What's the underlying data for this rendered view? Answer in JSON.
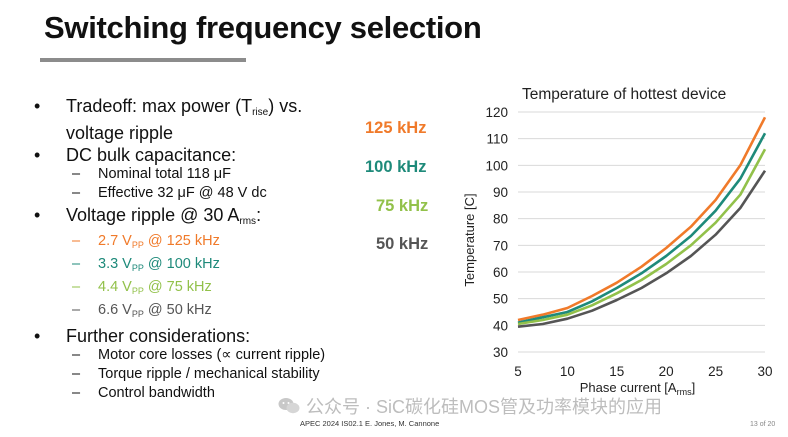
{
  "slide": {
    "title": "Switching frequency selection",
    "footer": "APEC 2024    IS02.1    E. Jones, M. Cannone",
    "page": "13 of 20",
    "watermark": "公众号 · SiC碳化硅MOS管及功率模块的应用"
  },
  "bullets": {
    "tradeoff": {
      "pre": "Tradeoff: max power (T",
      "sub": "rise",
      "post": ") vs.",
      "line2": "voltage ripple"
    },
    "dc_bulk": "DC bulk capacitance:",
    "dc_items": [
      "Nominal total 118 μF",
      "Effective 32 μF @ 48 V dc"
    ],
    "ripple": {
      "pre": "Voltage ripple @ 30 A",
      "sub": "rms",
      "post": ":"
    },
    "ripple_items": [
      {
        "a": "2.7 V",
        "sub": "PP",
        "b": " @ 125 kHz",
        "color": "#f07a2a"
      },
      {
        "a": "3.3 V",
        "sub": "PP",
        "b": " @ 100 kHz",
        "color": "#1e8a7a"
      },
      {
        "a": "4.4 V",
        "sub": "PP",
        "b": " @ 75 kHz",
        "color": "#92c14a"
      },
      {
        "a": "6.6 V",
        "sub": "PP",
        "b": " @ 50 kHz",
        "color": "#555555"
      }
    ],
    "further": "Further considerations:",
    "further_items": [
      "Motor core losses (∝ current ripple)",
      "Torque ripple / mechanical stability",
      "Control bandwidth"
    ]
  },
  "frequency_labels": [
    {
      "text": "125 kHz",
      "color": "#f07a2a"
    },
    {
      "text": "100 kHz",
      "color": "#1e8a7a"
    },
    {
      "text": "75 kHz",
      "color": "#92c14a"
    },
    {
      "text": "50 kHz",
      "color": "#555555"
    }
  ],
  "chart_data": {
    "type": "line",
    "title": "Temperature of hottest device",
    "xlabel": "Phase current [A",
    "xlabel_sub": "rms",
    "xlabel_post": "]",
    "ylabel": "Temperature  [C]",
    "xlim": [
      5,
      30
    ],
    "ylim": [
      30,
      120
    ],
    "xticks": [
      5,
      10,
      15,
      20,
      25,
      30
    ],
    "yticks": [
      30,
      40,
      50,
      60,
      70,
      80,
      90,
      100,
      110,
      120
    ],
    "grid": "horizontal",
    "x": [
      5,
      7.5,
      10,
      12.5,
      15,
      17.5,
      20,
      22.5,
      25,
      27.5,
      30
    ],
    "series": [
      {
        "color": "#f07a2a",
        "values": [
          42,
          44,
          46.5,
          51,
          56,
          62,
          69,
          77,
          87,
          100,
          118
        ]
      },
      {
        "color": "#1e8a7a",
        "values": [
          41,
          43,
          45,
          49,
          54,
          59.5,
          66,
          73.5,
          83,
          95,
          112
        ]
      },
      {
        "color": "#92c14a",
        "values": [
          40.5,
          42,
          44,
          47.5,
          52,
          57,
          63,
          70,
          78.5,
          89,
          106
        ]
      },
      {
        "color": "#555555",
        "values": [
          39.5,
          40.5,
          42.5,
          45.5,
          49.5,
          54,
          59.5,
          66,
          74,
          84,
          98
        ]
      }
    ]
  }
}
